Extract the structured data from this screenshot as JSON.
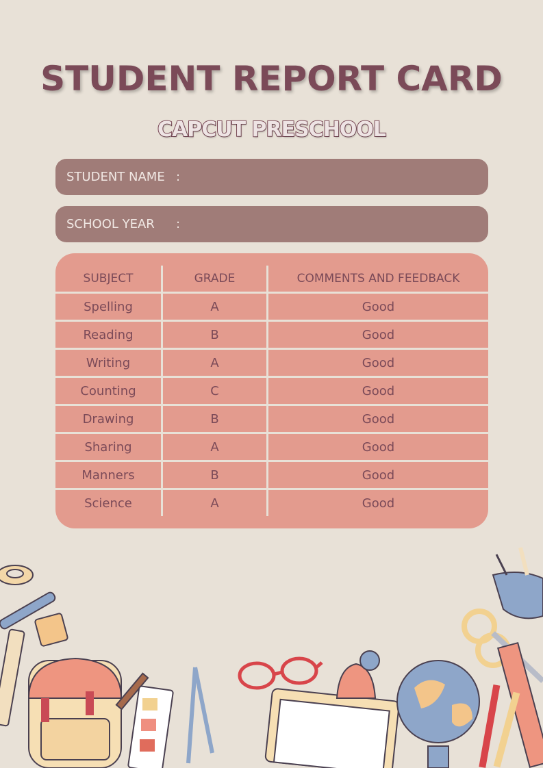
{
  "title": "STUDENT REPORT CARD",
  "subtitle": "CAPCUT PRESCHOOL",
  "fields": [
    {
      "label": "STUDENT NAME",
      "separator": ":",
      "value": ""
    },
    {
      "label": "SCHOOL YEAR",
      "separator": ":",
      "value": ""
    }
  ],
  "table": {
    "headers": [
      "SUBJECT",
      "GRADE",
      "COMMENTS AND FEEDBACK"
    ],
    "rows": [
      [
        "Spelling",
        "A",
        "Good"
      ],
      [
        "Reading",
        "B",
        "Good"
      ],
      [
        "Writing",
        "A",
        "Good"
      ],
      [
        "Counting",
        "C",
        "Good"
      ],
      [
        "Drawing",
        "B",
        "Good"
      ],
      [
        "Sharing",
        "A",
        "Good"
      ],
      [
        "Manners",
        "B",
        "Good"
      ],
      [
        "Science",
        "A",
        "Good"
      ]
    ]
  },
  "colors": {
    "background": "#e8e1d7",
    "title": "#7b4a58",
    "field_bar": "#a07c78",
    "table": "#e39b8e"
  },
  "decorations": [
    "tape-icon",
    "pen-icon",
    "sharpener-icon",
    "cutter-icon",
    "backpack-icon",
    "pencil-icon",
    "paint-palette-icon",
    "compass-icon",
    "glasses-icon",
    "book-icon",
    "bell-icon",
    "globe-icon",
    "scissors-icon",
    "ruler-icon",
    "pencil-cup-icon"
  ]
}
